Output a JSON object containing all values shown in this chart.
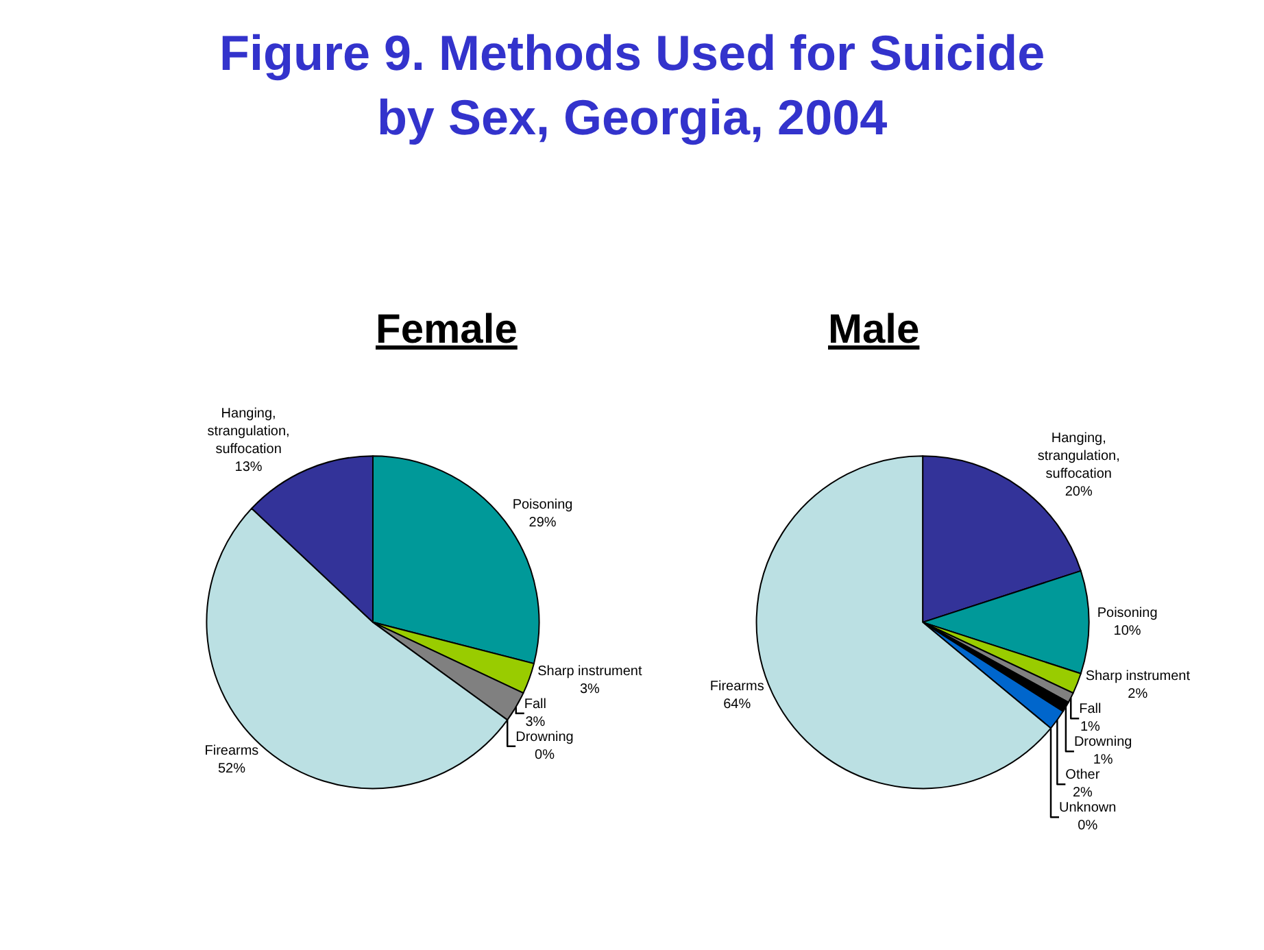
{
  "chart_data": [
    {
      "type": "pie",
      "title": "Figure 9. Methods Used for Suicide by Sex, Georgia, 2004",
      "subtitle": "Female",
      "categories": [
        "Poisoning",
        "Sharp instrument",
        "Fall",
        "Drowning",
        "Firearms",
        "Hanging, strangulation, suffocation"
      ],
      "values": [
        29,
        3,
        3,
        0,
        52,
        13
      ],
      "value_labels": [
        "29%",
        "3%",
        "3%",
        "0%",
        "52%",
        "13%"
      ],
      "colors": [
        "#009999",
        "#99cc00",
        "#808080",
        "#000000",
        "#bbe0e3",
        "#333399"
      ]
    },
    {
      "type": "pie",
      "subtitle": "Male",
      "categories": [
        "Hanging, strangulation, suffocation",
        "Poisoning",
        "Sharp instrument",
        "Fall",
        "Drowning",
        "Other",
        "Unknown",
        "Firearms"
      ],
      "values": [
        20,
        10,
        2,
        1,
        1,
        2,
        0,
        64
      ],
      "value_labels": [
        "20%",
        "10%",
        "2%",
        "1%",
        "1%",
        "2%",
        "0%",
        "64%"
      ],
      "colors": [
        "#333399",
        "#009999",
        "#99cc00",
        "#808080",
        "#000000",
        "#0066cc",
        "#ffffff",
        "#bbe0e3"
      ]
    }
  ]
}
